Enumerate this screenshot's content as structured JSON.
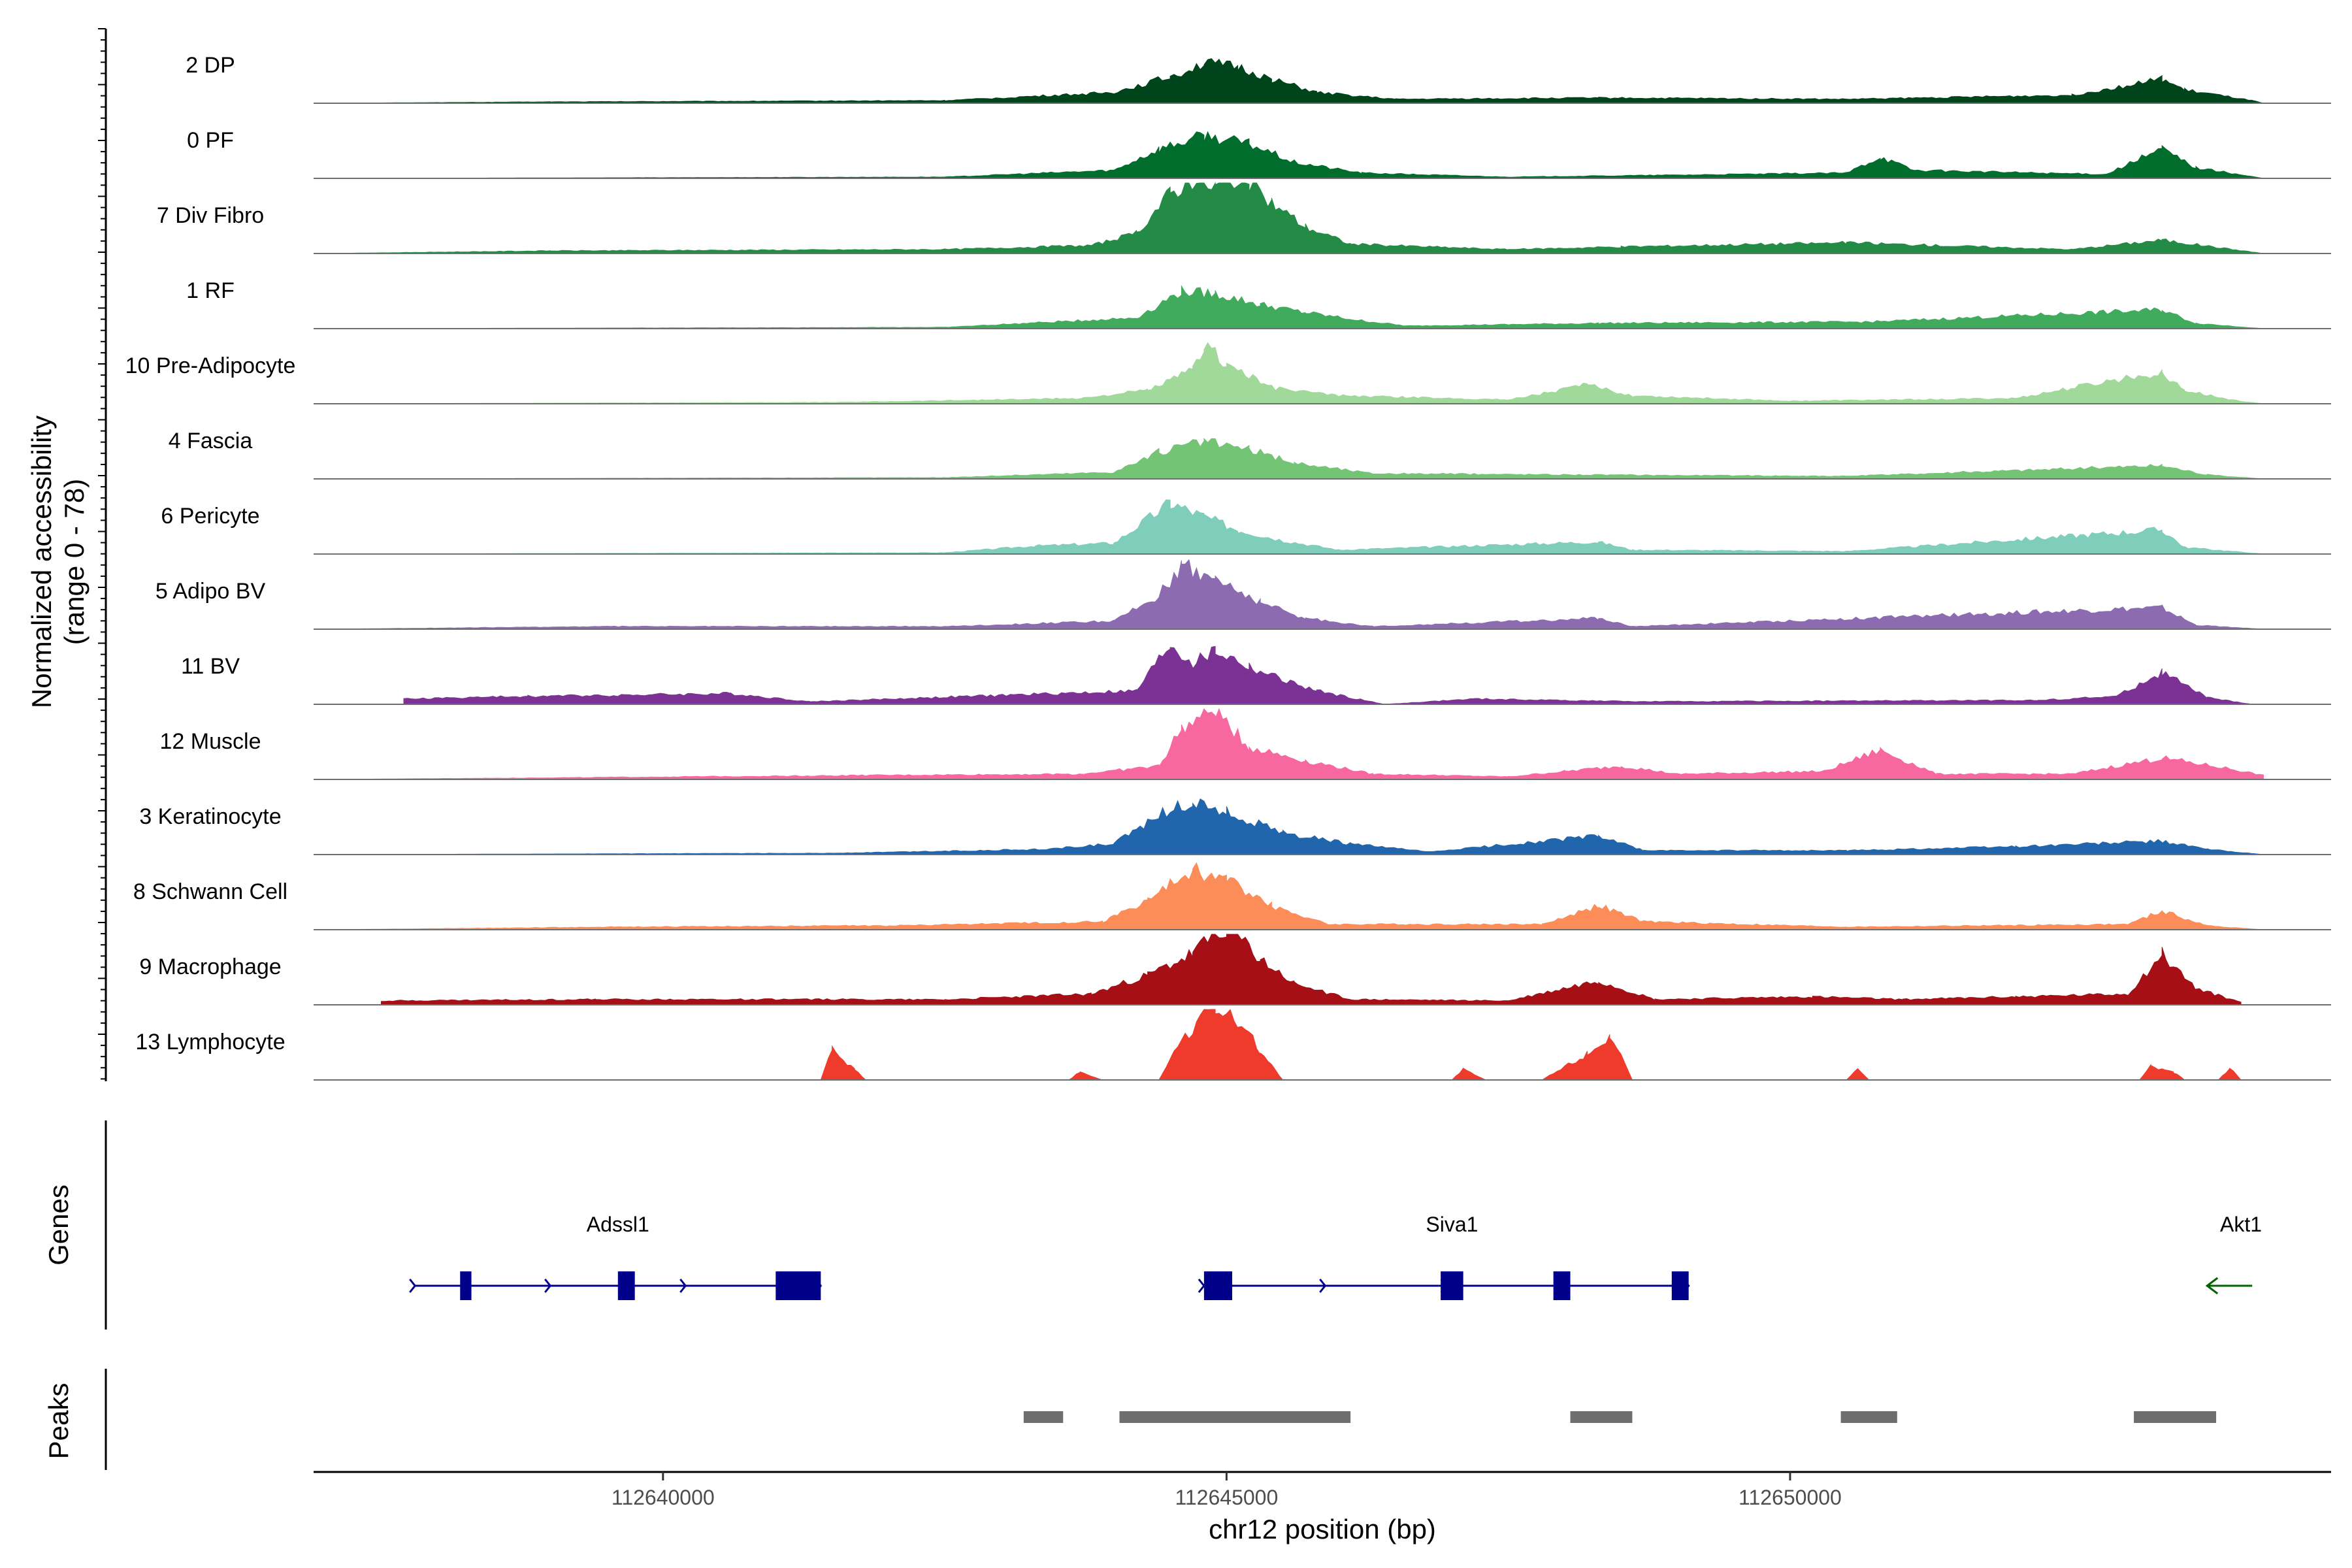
{
  "chart_data": {
    "type": "area",
    "title": "",
    "chromosome": "chr12",
    "xlabel": "chr12 position (bp)",
    "ylabel": "Normalized accessibility",
    "ylabel_range": "(range 0 - 78)",
    "ylim": [
      0,
      78
    ],
    "xlim": [
      112636900,
      112654800
    ],
    "x_ticks": [
      112640000,
      112645000,
      112650000
    ],
    "x_tick_labels": [
      "112640000",
      "112645000",
      "112650000"
    ],
    "panel_labels": {
      "genes": "Genes",
      "peaks": "Peaks"
    },
    "series": [
      {
        "name": "2 DP",
        "color": "#00441b",
        "profile": [
          [
            112637000,
            0
          ],
          [
            112639000,
            1
          ],
          [
            112642500,
            2
          ],
          [
            112644000,
            8
          ],
          [
            112644500,
            20
          ],
          [
            112644800,
            30
          ],
          [
            112645100,
            27
          ],
          [
            112645400,
            18
          ],
          [
            112645800,
            8
          ],
          [
            112646500,
            3
          ],
          [
            112648300,
            4
          ],
          [
            112650500,
            3
          ],
          [
            112652500,
            6
          ],
          [
            112653300,
            18
          ],
          [
            112653500,
            10
          ],
          [
            112654100,
            2
          ],
          [
            112654200,
            0
          ]
        ]
      },
      {
        "name": "0 PF",
        "color": "#006d2c",
        "profile": [
          [
            112637000,
            0
          ],
          [
            112642500,
            1
          ],
          [
            112644000,
            6
          ],
          [
            112644400,
            22
          ],
          [
            112644800,
            32
          ],
          [
            112645200,
            26
          ],
          [
            112645600,
            12
          ],
          [
            112646200,
            4
          ],
          [
            112647500,
            1
          ],
          [
            112650500,
            4
          ],
          [
            112650800,
            16
          ],
          [
            112651100,
            6
          ],
          [
            112652800,
            3
          ],
          [
            112653300,
            22
          ],
          [
            112653600,
            8
          ],
          [
            112654200,
            0
          ]
        ]
      },
      {
        "name": "7 Div Fibro",
        "color": "#238b45",
        "profile": [
          [
            112637000,
            0
          ],
          [
            112639000,
            2
          ],
          [
            112642500,
            3
          ],
          [
            112643800,
            6
          ],
          [
            112644200,
            15
          ],
          [
            112644500,
            45
          ],
          [
            112644700,
            55
          ],
          [
            112644900,
            50
          ],
          [
            112645000,
            60
          ],
          [
            112645200,
            52
          ],
          [
            112645400,
            38
          ],
          [
            112645700,
            20
          ],
          [
            112646100,
            7
          ],
          [
            112647500,
            3
          ],
          [
            112648500,
            5
          ],
          [
            112650500,
            8
          ],
          [
            112652500,
            3
          ],
          [
            112653300,
            10
          ],
          [
            112654200,
            0
          ]
        ]
      },
      {
        "name": "1 RF",
        "color": "#41ab5d",
        "profile": [
          [
            112637000,
            0
          ],
          [
            112642500,
            1
          ],
          [
            112644200,
            8
          ],
          [
            112644600,
            28
          ],
          [
            112644900,
            26
          ],
          [
            112645300,
            18
          ],
          [
            112645700,
            12
          ],
          [
            112646200,
            6
          ],
          [
            112646600,
            2
          ],
          [
            112648300,
            4
          ],
          [
            112650700,
            5
          ],
          [
            112653300,
            14
          ],
          [
            112653600,
            4
          ],
          [
            112654200,
            0
          ]
        ]
      },
      {
        "name": "10 Pre-Adipocyte",
        "color": "#a1d99b",
        "profile": [
          [
            112637000,
            0
          ],
          [
            112641500,
            1
          ],
          [
            112643700,
            4
          ],
          [
            112644300,
            10
          ],
          [
            112644700,
            25
          ],
          [
            112644800,
            44
          ],
          [
            112645000,
            30
          ],
          [
            112645400,
            12
          ],
          [
            112646000,
            6
          ],
          [
            112647500,
            3
          ],
          [
            112648200,
            14
          ],
          [
            112648600,
            6
          ],
          [
            112650000,
            2
          ],
          [
            112652000,
            4
          ],
          [
            112653300,
            24
          ],
          [
            112653500,
            10
          ],
          [
            112653900,
            3
          ],
          [
            112654200,
            0
          ]
        ]
      },
      {
        "name": "4 Fascia",
        "color": "#74c476",
        "profile": [
          [
            112637000,
            0
          ],
          [
            112642500,
            1
          ],
          [
            112644000,
            5
          ],
          [
            112644400,
            20
          ],
          [
            112644800,
            28
          ],
          [
            112645200,
            22
          ],
          [
            112645600,
            12
          ],
          [
            112646300,
            4
          ],
          [
            112648300,
            3
          ],
          [
            112650500,
            2
          ],
          [
            112653300,
            10
          ],
          [
            112653700,
            3
          ],
          [
            112654200,
            0
          ]
        ]
      },
      {
        "name": "6 Pericyte",
        "color": "#7fcdbb",
        "profile": [
          [
            112637000,
            0
          ],
          [
            112642500,
            1
          ],
          [
            112643300,
            6
          ],
          [
            112644000,
            8
          ],
          [
            112644500,
            38
          ],
          [
            112644800,
            28
          ],
          [
            112645100,
            18
          ],
          [
            112645500,
            10
          ],
          [
            112646000,
            3
          ],
          [
            112648300,
            9
          ],
          [
            112648600,
            3
          ],
          [
            112650500,
            2
          ],
          [
            112653300,
            18
          ],
          [
            112653500,
            5
          ],
          [
            112654200,
            0
          ]
        ]
      },
      {
        "name": "5 Adipo BV",
        "color": "#8c6bb1",
        "profile": [
          [
            112637000,
            0
          ],
          [
            112639500,
            2
          ],
          [
            112642500,
            2
          ],
          [
            112644000,
            6
          ],
          [
            112644400,
            25
          ],
          [
            112644600,
            48
          ],
          [
            112644900,
            38
          ],
          [
            112645300,
            20
          ],
          [
            112645700,
            8
          ],
          [
            112646300,
            2
          ],
          [
            112648300,
            8
          ],
          [
            112648600,
            2
          ],
          [
            112653300,
            16
          ],
          [
            112653600,
            3
          ],
          [
            112654200,
            0
          ]
        ]
      },
      {
        "name": "11 BV",
        "color": "#7b3294",
        "profile": [
          [
            112637700,
            4
          ],
          [
            112638800,
            6
          ],
          [
            112640600,
            8
          ],
          [
            112641300,
            2
          ],
          [
            112644200,
            10
          ],
          [
            112644500,
            45
          ],
          [
            112644700,
            30
          ],
          [
            112644900,
            40
          ],
          [
            112645200,
            28
          ],
          [
            112645500,
            18
          ],
          [
            112645800,
            10
          ],
          [
            112646400,
            0
          ],
          [
            112647200,
            4
          ],
          [
            112648700,
            2
          ],
          [
            112652200,
            3
          ],
          [
            112652900,
            6
          ],
          [
            112653300,
            24
          ],
          [
            112653700,
            5
          ],
          [
            112654100,
            0
          ]
        ]
      },
      {
        "name": "12 Muscle",
        "color": "#f768a1",
        "profile": [
          [
            112637000,
            0
          ],
          [
            112641800,
            3
          ],
          [
            112643700,
            4
          ],
          [
            112644400,
            10
          ],
          [
            112644600,
            38
          ],
          [
            112644900,
            52
          ],
          [
            112645200,
            24
          ],
          [
            112645700,
            14
          ],
          [
            112646300,
            4
          ],
          [
            112647500,
            2
          ],
          [
            112648000,
            6
          ],
          [
            112648500,
            10
          ],
          [
            112649000,
            4
          ],
          [
            112650300,
            6
          ],
          [
            112650800,
            22
          ],
          [
            112651300,
            4
          ],
          [
            112652500,
            4
          ],
          [
            112653300,
            16
          ],
          [
            112653900,
            8
          ],
          [
            112654200,
            3
          ]
        ]
      },
      {
        "name": "3 Keratinocyte",
        "color": "#2166ac",
        "profile": [
          [
            112637000,
            0
          ],
          [
            112641500,
            1
          ],
          [
            112643400,
            4
          ],
          [
            112644000,
            8
          ],
          [
            112644400,
            30
          ],
          [
            112644700,
            40
          ],
          [
            112645000,
            32
          ],
          [
            112645500,
            16
          ],
          [
            112646100,
            8
          ],
          [
            112646800,
            2
          ],
          [
            112648300,
            14
          ],
          [
            112648700,
            3
          ],
          [
            112650500,
            3
          ],
          [
            112652000,
            6
          ],
          [
            112653300,
            10
          ],
          [
            112653700,
            4
          ],
          [
            112654200,
            0
          ]
        ]
      },
      {
        "name": "8 Schwann Cell",
        "color": "#fc8d59",
        "profile": [
          [
            112637000,
            0
          ],
          [
            112639500,
            2
          ],
          [
            112642000,
            3
          ],
          [
            112643900,
            6
          ],
          [
            112644300,
            22
          ],
          [
            112644700,
            45
          ],
          [
            112645000,
            38
          ],
          [
            112645400,
            18
          ],
          [
            112645900,
            4
          ],
          [
            112647800,
            4
          ],
          [
            112648300,
            18
          ],
          [
            112648700,
            6
          ],
          [
            112650500,
            2
          ],
          [
            112653000,
            4
          ],
          [
            112653300,
            14
          ],
          [
            112653700,
            3
          ],
          [
            112654200,
            0
          ]
        ]
      },
      {
        "name": "9 Macrophage",
        "color": "#a50f15",
        "profile": [
          [
            112637500,
            3
          ],
          [
            112639400,
            4
          ],
          [
            112642500,
            4
          ],
          [
            112643800,
            8
          ],
          [
            112644300,
            22
          ],
          [
            112644700,
            38
          ],
          [
            112645000,
            60
          ],
          [
            112645300,
            34
          ],
          [
            112645600,
            16
          ],
          [
            112646100,
            4
          ],
          [
            112647500,
            3
          ],
          [
            112648300,
            18
          ],
          [
            112648800,
            4
          ],
          [
            112650200,
            6
          ],
          [
            112651000,
            4
          ],
          [
            112652000,
            6
          ],
          [
            112653000,
            8
          ],
          [
            112653300,
            38
          ],
          [
            112653600,
            12
          ],
          [
            112654000,
            2
          ]
        ]
      },
      {
        "name": "13 Lymphocyte",
        "color": "#ef3b2c",
        "profile": [
          [
            112641400,
            0
          ],
          [
            112641500,
            22
          ],
          [
            112641700,
            8
          ],
          [
            112641800,
            0
          ],
          [
            112643600,
            0
          ],
          [
            112643700,
            6
          ],
          [
            112643900,
            0
          ],
          [
            112644400,
            0
          ],
          [
            112644600,
            30
          ],
          [
            112644900,
            58
          ],
          [
            112645100,
            44
          ],
          [
            112645300,
            22
          ],
          [
            112645500,
            0
          ],
          [
            112647000,
            0
          ],
          [
            112647100,
            8
          ],
          [
            112647300,
            0
          ],
          [
            112647800,
            0
          ],
          [
            112648200,
            20
          ],
          [
            112648400,
            34
          ],
          [
            112648600,
            0
          ],
          [
            112650500,
            0
          ],
          [
            112650600,
            8
          ],
          [
            112650700,
            0
          ],
          [
            112653100,
            0
          ],
          [
            112653200,
            10
          ],
          [
            112653400,
            6
          ],
          [
            112653500,
            0
          ],
          [
            112653800,
            0
          ],
          [
            112653900,
            9
          ],
          [
            112654000,
            0
          ]
        ]
      }
    ],
    "genes": [
      {
        "name": "Adssl1",
        "strand": "+",
        "start": 112637800,
        "end": 112641400,
        "label_pos": 112639600,
        "color": "#00008b",
        "exons": [
          [
            112638200,
            112638300
          ],
          [
            112639600,
            112639750
          ],
          [
            112641000,
            112641400
          ]
        ]
      },
      {
        "name": "Siva1",
        "strand": "+",
        "start": 112644800,
        "end": 112649100,
        "label_pos": 112647000,
        "color": "#00008b",
        "exons": [
          [
            112644800,
            112645050
          ],
          [
            112646900,
            112647100
          ],
          [
            112647900,
            112648050
          ],
          [
            112648950,
            112649100
          ]
        ]
      },
      {
        "name": "Akt1",
        "strand": "-",
        "start": 112653700,
        "end": 112654100,
        "label_pos": 112654000,
        "color": "#006400",
        "exons": []
      }
    ],
    "peaks": [
      [
        112643200,
        112643550
      ],
      [
        112644050,
        112646100
      ],
      [
        112648050,
        112648600
      ],
      [
        112650450,
        112650950
      ],
      [
        112653050,
        112653780
      ]
    ]
  }
}
